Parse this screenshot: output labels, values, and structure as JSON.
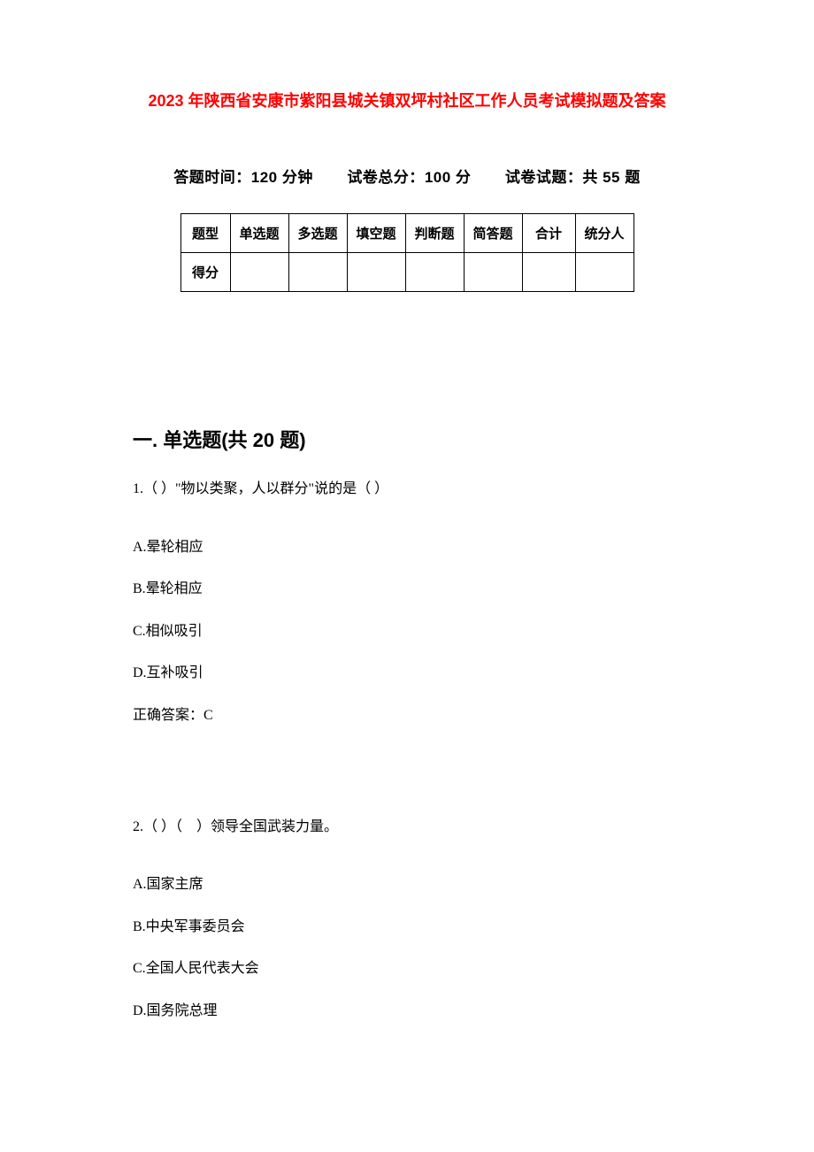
{
  "title": "2023 年陕西省安康市紫阳县城关镇双坪村社区工作人员考试模拟题及答案",
  "info": {
    "time_label": "答题时间：",
    "time_value": "120 分钟",
    "total_label": "试卷总分：",
    "total_value": "100 分",
    "count_label": "试卷试题：",
    "count_value": "共 55 题"
  },
  "score_table": {
    "row1": [
      "题型",
      "单选题",
      "多选题",
      "填空题",
      "判断题",
      "简答题",
      "合计",
      "统分人"
    ],
    "row2_label": "得分"
  },
  "section1_heading": "一. 单选题(共 20 题)",
  "q1": {
    "stem": "1.（ ）\"物以类聚，人以群分\"说的是（ ）",
    "optA": "A.晕轮相应",
    "optB": "B.晕轮相应",
    "optC": "C.相似吸引",
    "optD": "D.互补吸引",
    "answer": "正确答案：C"
  },
  "q2": {
    "stem": "2.（ ）（　）领导全国武装力量。",
    "optA": "A.国家主席",
    "optB": "B.中央军事委员会",
    "optC": "C.全国人民代表大会",
    "optD": "D.国务院总理"
  },
  "colors": {
    "title": "#ff0000",
    "text": "#000000",
    "background": "#ffffff",
    "border": "#000000"
  }
}
